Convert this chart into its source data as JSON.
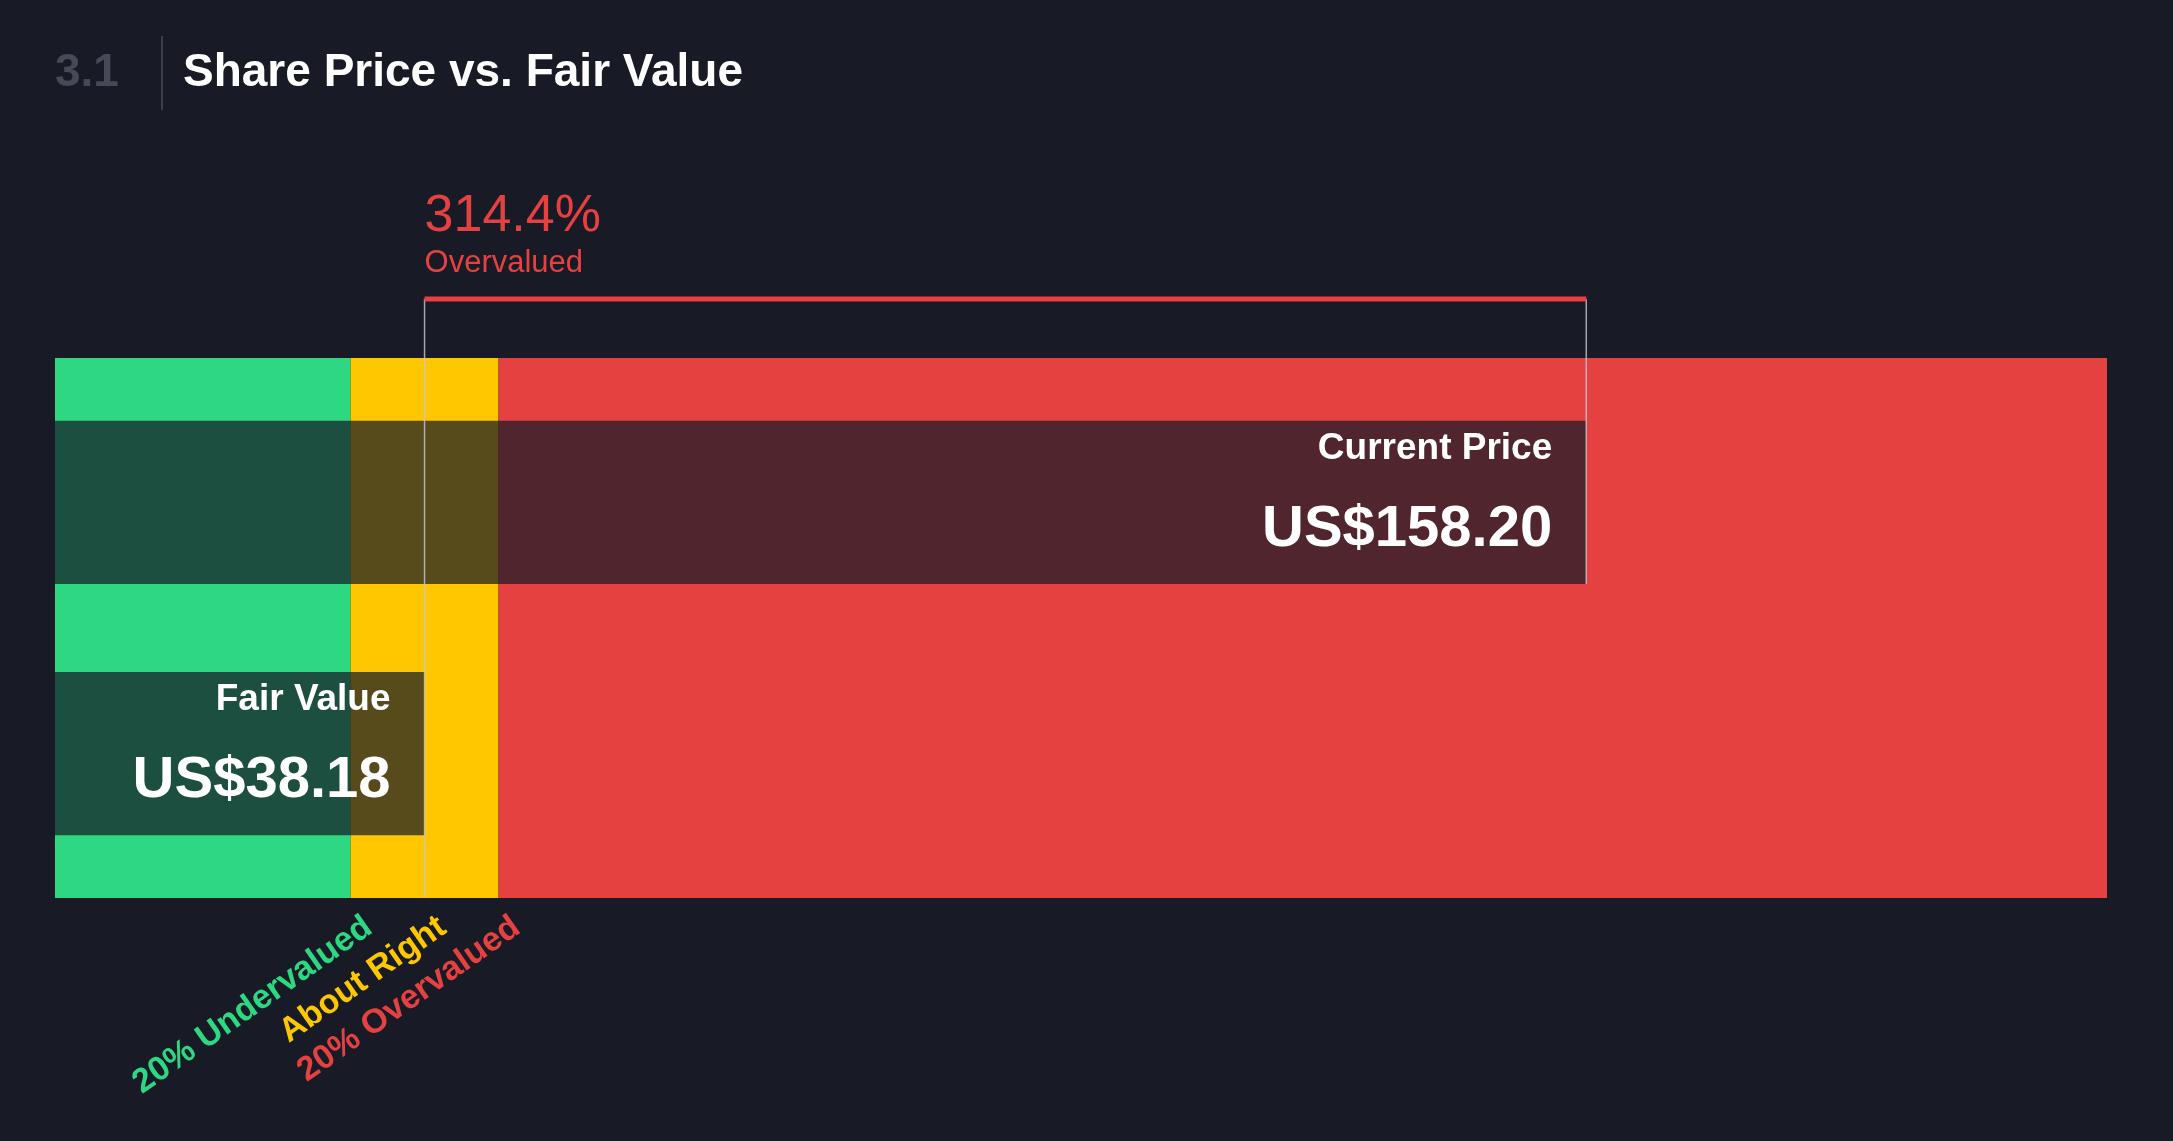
{
  "chart_data": {
    "type": "bar",
    "orientation": "horizontal",
    "title": "Share Price vs. Fair Value",
    "categories": [
      "Current Price",
      "Fair Value"
    ],
    "values": [
      158.2,
      38.18
    ],
    "value_labels": [
      "US$158.20",
      "US$38.18"
    ],
    "color": "#161a25",
    "xlim": [
      0,
      212
    ],
    "tick_labels": false,
    "bands": [
      {
        "axis": "x",
        "from": 0,
        "to": 30.54,
        "label": "20% Undervalued",
        "color": "#2ed882"
      },
      {
        "axis": "x",
        "from": 30.54,
        "to": 45.82,
        "label": "About Right",
        "color": "#ffc700"
      },
      {
        "axis": "x",
        "from": 45.82,
        "to": 212,
        "label": "20% Overvalued",
        "color": "#e64141"
      }
    ],
    "ref_lines": [
      {
        "axis": "x",
        "value": 38.18,
        "color": "#c8c8d0"
      },
      {
        "axis": "x",
        "value": 158.2,
        "color": "#c8c8d0"
      }
    ],
    "annotations": [
      "3.1",
      "314.4%",
      "Overvalued"
    ]
  }
}
